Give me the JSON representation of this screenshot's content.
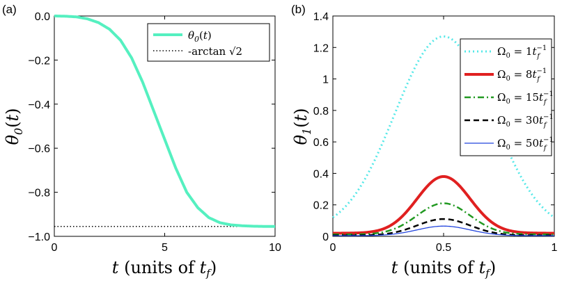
{
  "panel_labels": [
    "(a)",
    "(b)"
  ],
  "chart_data": [
    {
      "type": "line",
      "panel": "(a)",
      "xlabel": "t (units of t_f)",
      "ylabel": "θ0(t)",
      "xlim": [
        0,
        10
      ],
      "ylim": [
        -1.0,
        0.0
      ],
      "x_ticks": [
        0,
        5,
        10
      ],
      "x_tick_labels": [
        "0",
        "5",
        "10"
      ],
      "y_ticks": [
        0,
        -0.2,
        -0.4,
        -0.6,
        -0.8,
        -1.0
      ],
      "y_tick_labels": [
        "0.0",
        "−0.2",
        "−0.4",
        "−0.6",
        "−0.8",
        "−1.0"
      ],
      "legend_position": "top-right",
      "series": [
        {
          "name": "θ0(t)",
          "color": "#55f0c0",
          "style": "solid",
          "x": [
            0,
            0.5,
            1,
            1.5,
            2,
            2.5,
            3,
            3.5,
            4,
            4.5,
            5,
            5.5,
            6,
            6.5,
            7,
            7.5,
            8,
            8.5,
            9,
            9.5,
            10
          ],
          "y": [
            0,
            -0.001,
            -0.004,
            -0.013,
            -0.03,
            -0.06,
            -0.11,
            -0.19,
            -0.3,
            -0.43,
            -0.56,
            -0.69,
            -0.8,
            -0.87,
            -0.915,
            -0.938,
            -0.948,
            -0.952,
            -0.954,
            -0.955,
            -0.955
          ]
        },
        {
          "name": "-arctan √2",
          "color": "#000000",
          "style": "dotted",
          "x": [
            0,
            10
          ],
          "y": [
            -0.955,
            -0.955
          ]
        }
      ]
    },
    {
      "type": "line",
      "panel": "(b)",
      "xlabel": "t (units of t_f)",
      "ylabel": "θ1(t)",
      "xlim": [
        0,
        1
      ],
      "ylim": [
        0,
        1.4
      ],
      "x_ticks": [
        0,
        0.5,
        1
      ],
      "x_tick_labels": [
        "0",
        "0.5",
        "1"
      ],
      "y_ticks": [
        0,
        0.2,
        0.4,
        0.6,
        0.8,
        1,
        1.2,
        1.4
      ],
      "y_tick_labels": [
        "0",
        "0.2",
        "0.4",
        "0.6",
        "0.8",
        "1",
        "1.2",
        "1.4"
      ],
      "legend_position": "top-right",
      "series": [
        {
          "name": "Ω0 = 1 t_f^-1",
          "omega": "1",
          "color": "#55e8e8",
          "style": "dotted",
          "width": 3,
          "peak": 1.27,
          "edge": 0.12,
          "sigma": 0.22
        },
        {
          "name": "Ω0 = 8 t_f^-1",
          "omega": "8",
          "color": "#e02020",
          "style": "solid",
          "width": 4,
          "peak": 0.38,
          "edge": 0.02,
          "sigma": 0.12
        },
        {
          "name": "Ω0 = 15 t_f^-1",
          "omega": "15",
          "color": "#229922",
          "style": "dashdot",
          "width": 2.5,
          "peak": 0.21,
          "edge": 0.012,
          "sigma": 0.12
        },
        {
          "name": "Ω0 = 30 t_f^-1",
          "omega": "30",
          "color": "#000000",
          "style": "dashed",
          "width": 2.5,
          "peak": 0.11,
          "edge": 0.006,
          "sigma": 0.12
        },
        {
          "name": "Ω0 = 50 t_f^-1",
          "omega": "50",
          "color": "#2244dd",
          "style": "solid",
          "width": 1.3,
          "peak": 0.065,
          "edge": 0.004,
          "sigma": 0.12
        }
      ]
    }
  ]
}
